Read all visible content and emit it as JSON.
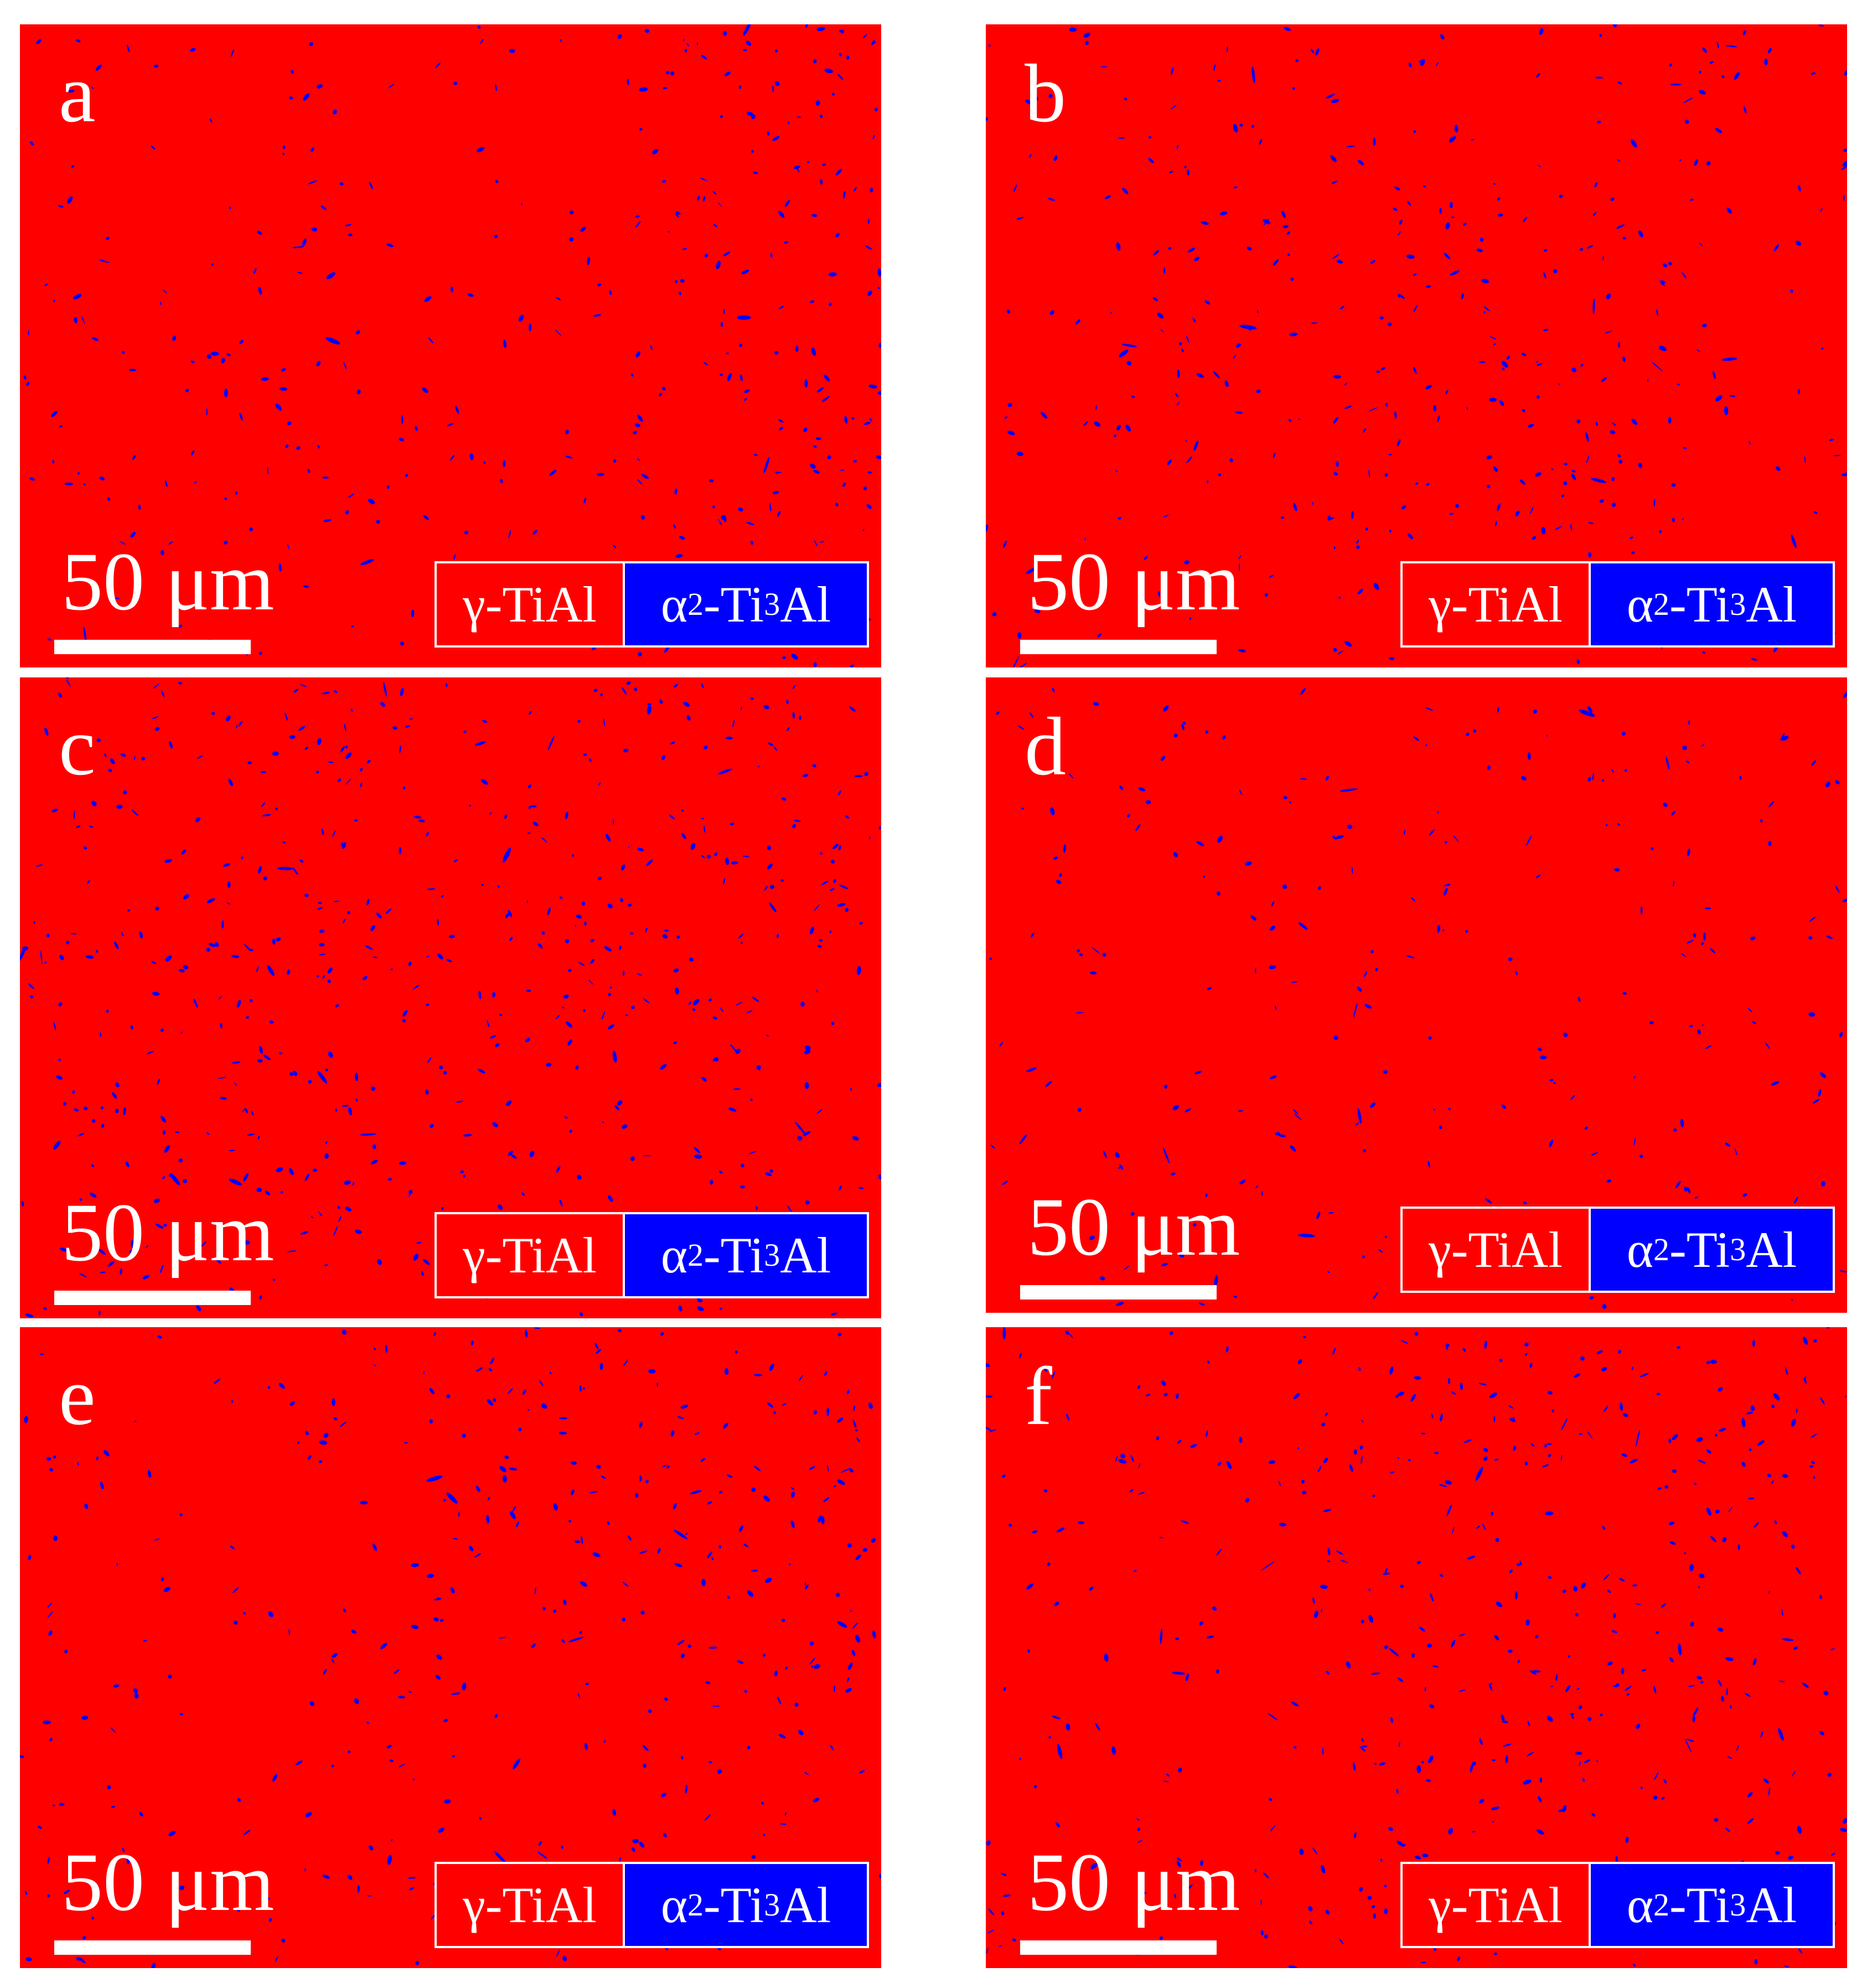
{
  "colors": {
    "gamma": "#ff0000",
    "alpha2": "#0000ff",
    "text": "#ffffff",
    "background": "#ffffff"
  },
  "panels": [
    {
      "letter": "a",
      "scale_label": "50 μm",
      "legend": {
        "gamma": "γ-TiAl",
        "alpha_main": "α",
        "alpha_sub": "2",
        "alpha_mid": "-Ti",
        "alpha_sub2": "3",
        "alpha_end": "Al"
      }
    },
    {
      "letter": "b",
      "scale_label": "50 μm",
      "legend": {
        "gamma": "γ-TiAl",
        "alpha_main": "α",
        "alpha_sub": "2",
        "alpha_mid": "-Ti",
        "alpha_sub2": "3",
        "alpha_end": "Al"
      }
    },
    {
      "letter": "c",
      "scale_label": "50 μm",
      "legend": {
        "gamma": "γ-TiAl",
        "alpha_main": "α",
        "alpha_sub": "2",
        "alpha_mid": "-Ti",
        "alpha_sub2": "3",
        "alpha_end": "Al"
      }
    },
    {
      "letter": "d",
      "scale_label": "50 μm",
      "legend": {
        "gamma": "γ-TiAl",
        "alpha_main": "α",
        "alpha_sub": "2",
        "alpha_mid": "-Ti",
        "alpha_sub2": "3",
        "alpha_end": "Al"
      }
    },
    {
      "letter": "e",
      "scale_label": "50 μm",
      "legend": {
        "gamma": "γ-TiAl",
        "alpha_main": "α",
        "alpha_sub": "2",
        "alpha_mid": "-Ti",
        "alpha_sub2": "3",
        "alpha_end": "Al"
      }
    },
    {
      "letter": "f",
      "scale_label": "50 μm",
      "legend": {
        "gamma": "γ-TiAl",
        "alpha_main": "α",
        "alpha_sub": "2",
        "alpha_mid": "-Ti",
        "alpha_sub2": "3",
        "alpha_end": "Al"
      }
    }
  ]
}
